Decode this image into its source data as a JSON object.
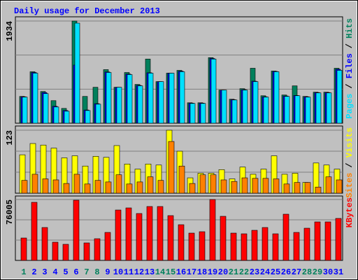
{
  "chart_data": {
    "type": "bar",
    "title": "Daily usage for December 2013",
    "categories": [
      "1",
      "2",
      "3",
      "4",
      "5",
      "6",
      "7",
      "8",
      "9",
      "10",
      "11",
      "12",
      "13",
      "14",
      "15",
      "16",
      "17",
      "18",
      "19",
      "20",
      "21",
      "22",
      "23",
      "24",
      "25",
      "26",
      "27",
      "28",
      "29",
      "30",
      "31"
    ],
    "category_colors": [
      "#00805c",
      "#0000ff",
      "#0000ff",
      "#0000ff",
      "#0000ff",
      "#0000ff",
      "#00805c",
      "#00805c",
      "#0000ff",
      "#0000ff",
      "#0000ff",
      "#0000ff",
      "#0000ff",
      "#00805c",
      "#00805c",
      "#0000ff",
      "#0000ff",
      "#0000ff",
      "#0000ff",
      "#0000ff",
      "#00805c",
      "#00805c",
      "#0000ff",
      "#0000ff",
      "#0000ff",
      "#0000ff",
      "#0000ff",
      "#00805c",
      "#00805c",
      "#0000ff",
      "#0000ff"
    ],
    "legend_separator": "/",
    "grid": true,
    "panels": [
      {
        "ylim": [
          0,
          1934
        ],
        "yticks": [
          1934
        ],
        "series": [
          {
            "name": "Hits",
            "color": "#00805c",
            "values": [
              507,
              974,
              600,
              427,
              280,
              1934,
              507,
              680,
              1014,
              680,
              960,
              734,
              1214,
              787,
              947,
              1000,
              387,
              387,
              1241,
              627,
              454,
              654,
              1040,
              520,
              987,
              534,
              707,
              507,
              587,
              587,
              1040
            ]
          },
          {
            "name": "Files",
            "color": "#0000ff",
            "values": [
              500,
              960,
              580,
              320,
              240,
              1100,
              250,
              370,
              970,
              680,
              930,
              715,
              955,
              787,
              947,
              985,
              380,
              380,
              1225,
              627,
              445,
              635,
              795,
              500,
              980,
              515,
              525,
              500,
              580,
              580,
              1020
            ]
          },
          {
            "name": "Pages",
            "color": "#00e0ff",
            "values": [
              494,
              947,
              560,
              307,
              227,
              1894,
              240,
              360,
              960,
              680,
              920,
              707,
              947,
              787,
              947,
              974,
              374,
              374,
              1214,
              627,
              440,
              627,
              787,
              494,
              974,
              507,
              520,
              494,
              574,
              574,
              1000
            ]
          }
        ]
      },
      {
        "ylim": [
          0,
          123
        ],
        "yticks": [
          123
        ],
        "series": [
          {
            "name": "Visits",
            "color": "#ffff00",
            "values": [
              75,
              97,
              94,
              88,
              69,
              73,
              53,
              72,
              70,
              93,
              57,
              47,
              57,
              55,
              123,
              82,
              30,
              39,
              39,
              46,
              28,
              51,
              37,
              47,
              73,
              37,
              39,
              21,
              59,
              55,
              47
            ]
          },
          {
            "name": "Sites",
            "color": "#ff8000",
            "values": [
              25,
              37,
              28,
              26,
              19,
              37,
              18,
              25,
              22,
              36,
              18,
              22,
              32,
              25,
              101,
              53,
              19,
              36,
              36,
              26,
              23,
              30,
              29,
              29,
              28,
              18,
              21,
              21,
              12,
              32,
              26
            ]
          }
        ]
      },
      {
        "ylim": [
          0,
          76005
        ],
        "yticks": [
          76005
        ],
        "series": [
          {
            "name": "KBytes",
            "color": "#ff0000",
            "values": [
              27955,
              72509,
              41059,
              22714,
              20093,
              75130,
              21840,
              27082,
              34944,
              62899,
              65520,
              58531,
              67267,
              67267,
              55910,
              44554,
              34070,
              35818,
              76005,
              55037,
              34070,
              33197,
              37565,
              41059,
              33197,
              57658,
              34944,
              40186,
              48048,
              48048,
              52416
            ]
          }
        ]
      }
    ]
  }
}
